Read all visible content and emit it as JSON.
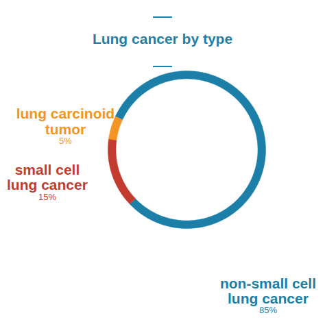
{
  "chart_data": {
    "type": "pie",
    "title": "Lung cancer by type",
    "categories": [
      "non-small cell lung cancer",
      "small cell lung cancer",
      "lung carcinoid tumor"
    ],
    "values": [
      85,
      15,
      5
    ],
    "value_labels": [
      "85%",
      "15%",
      "5%"
    ],
    "colors": [
      "#1b7fa8",
      "#c23b2e",
      "#f39424"
    ],
    "data_labels": true
  }
}
